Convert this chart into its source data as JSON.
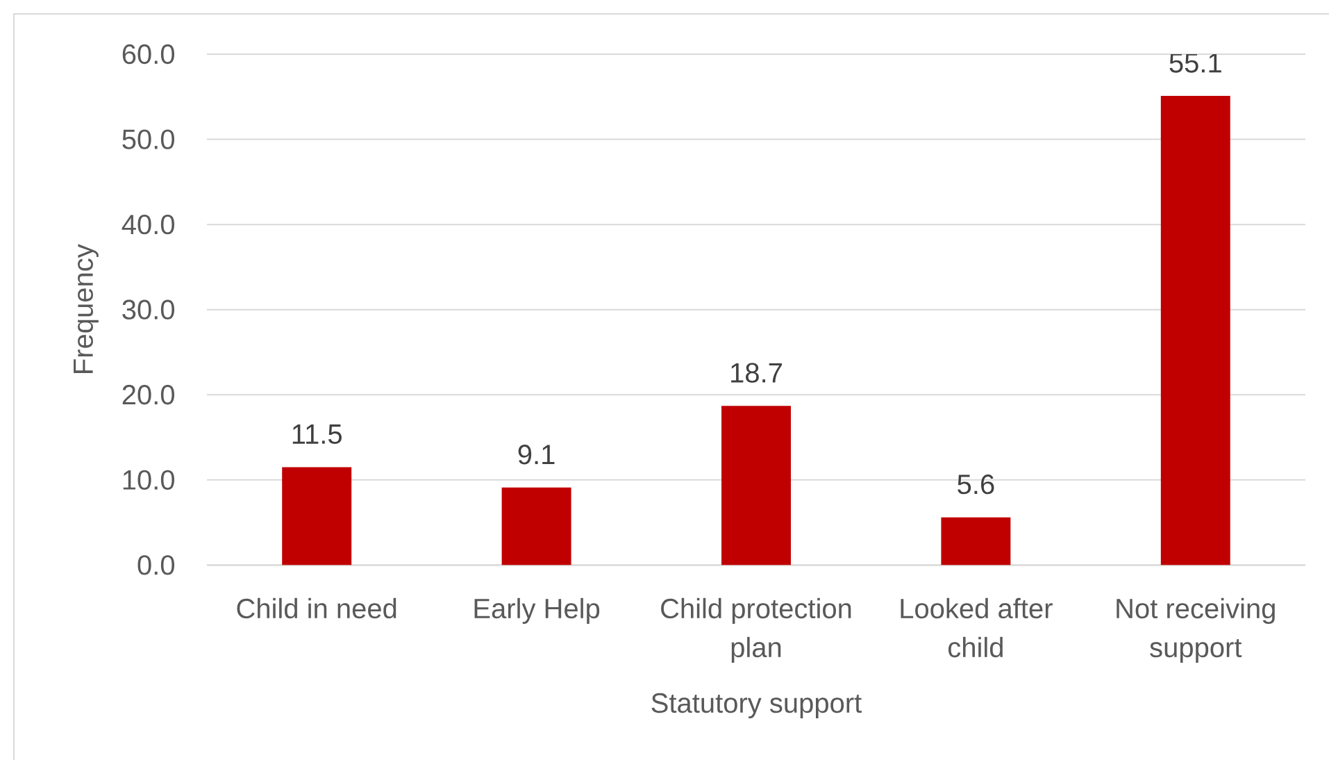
{
  "chart_data": {
    "type": "bar",
    "xlabel": "Statutory support",
    "ylabel": "Frequency",
    "categories": [
      "Child in need",
      "Early Help",
      "Child protection plan",
      "Looked after child",
      "Not receiving support"
    ],
    "values": [
      11.5,
      9.1,
      18.7,
      5.6,
      55.1
    ],
    "color": "#c00000",
    "ylim": [
      0,
      60
    ],
    "yticks": [
      {
        "value": 0,
        "label": "0.0"
      },
      {
        "value": 10,
        "label": "10.0"
      },
      {
        "value": 20,
        "label": "20.0"
      },
      {
        "value": 30,
        "label": "30.0"
      },
      {
        "value": 40,
        "label": "40.0"
      },
      {
        "value": 50,
        "label": "50.0"
      },
      {
        "value": 60,
        "label": "60.0"
      }
    ],
    "grid": "y",
    "data_labels": true
  }
}
